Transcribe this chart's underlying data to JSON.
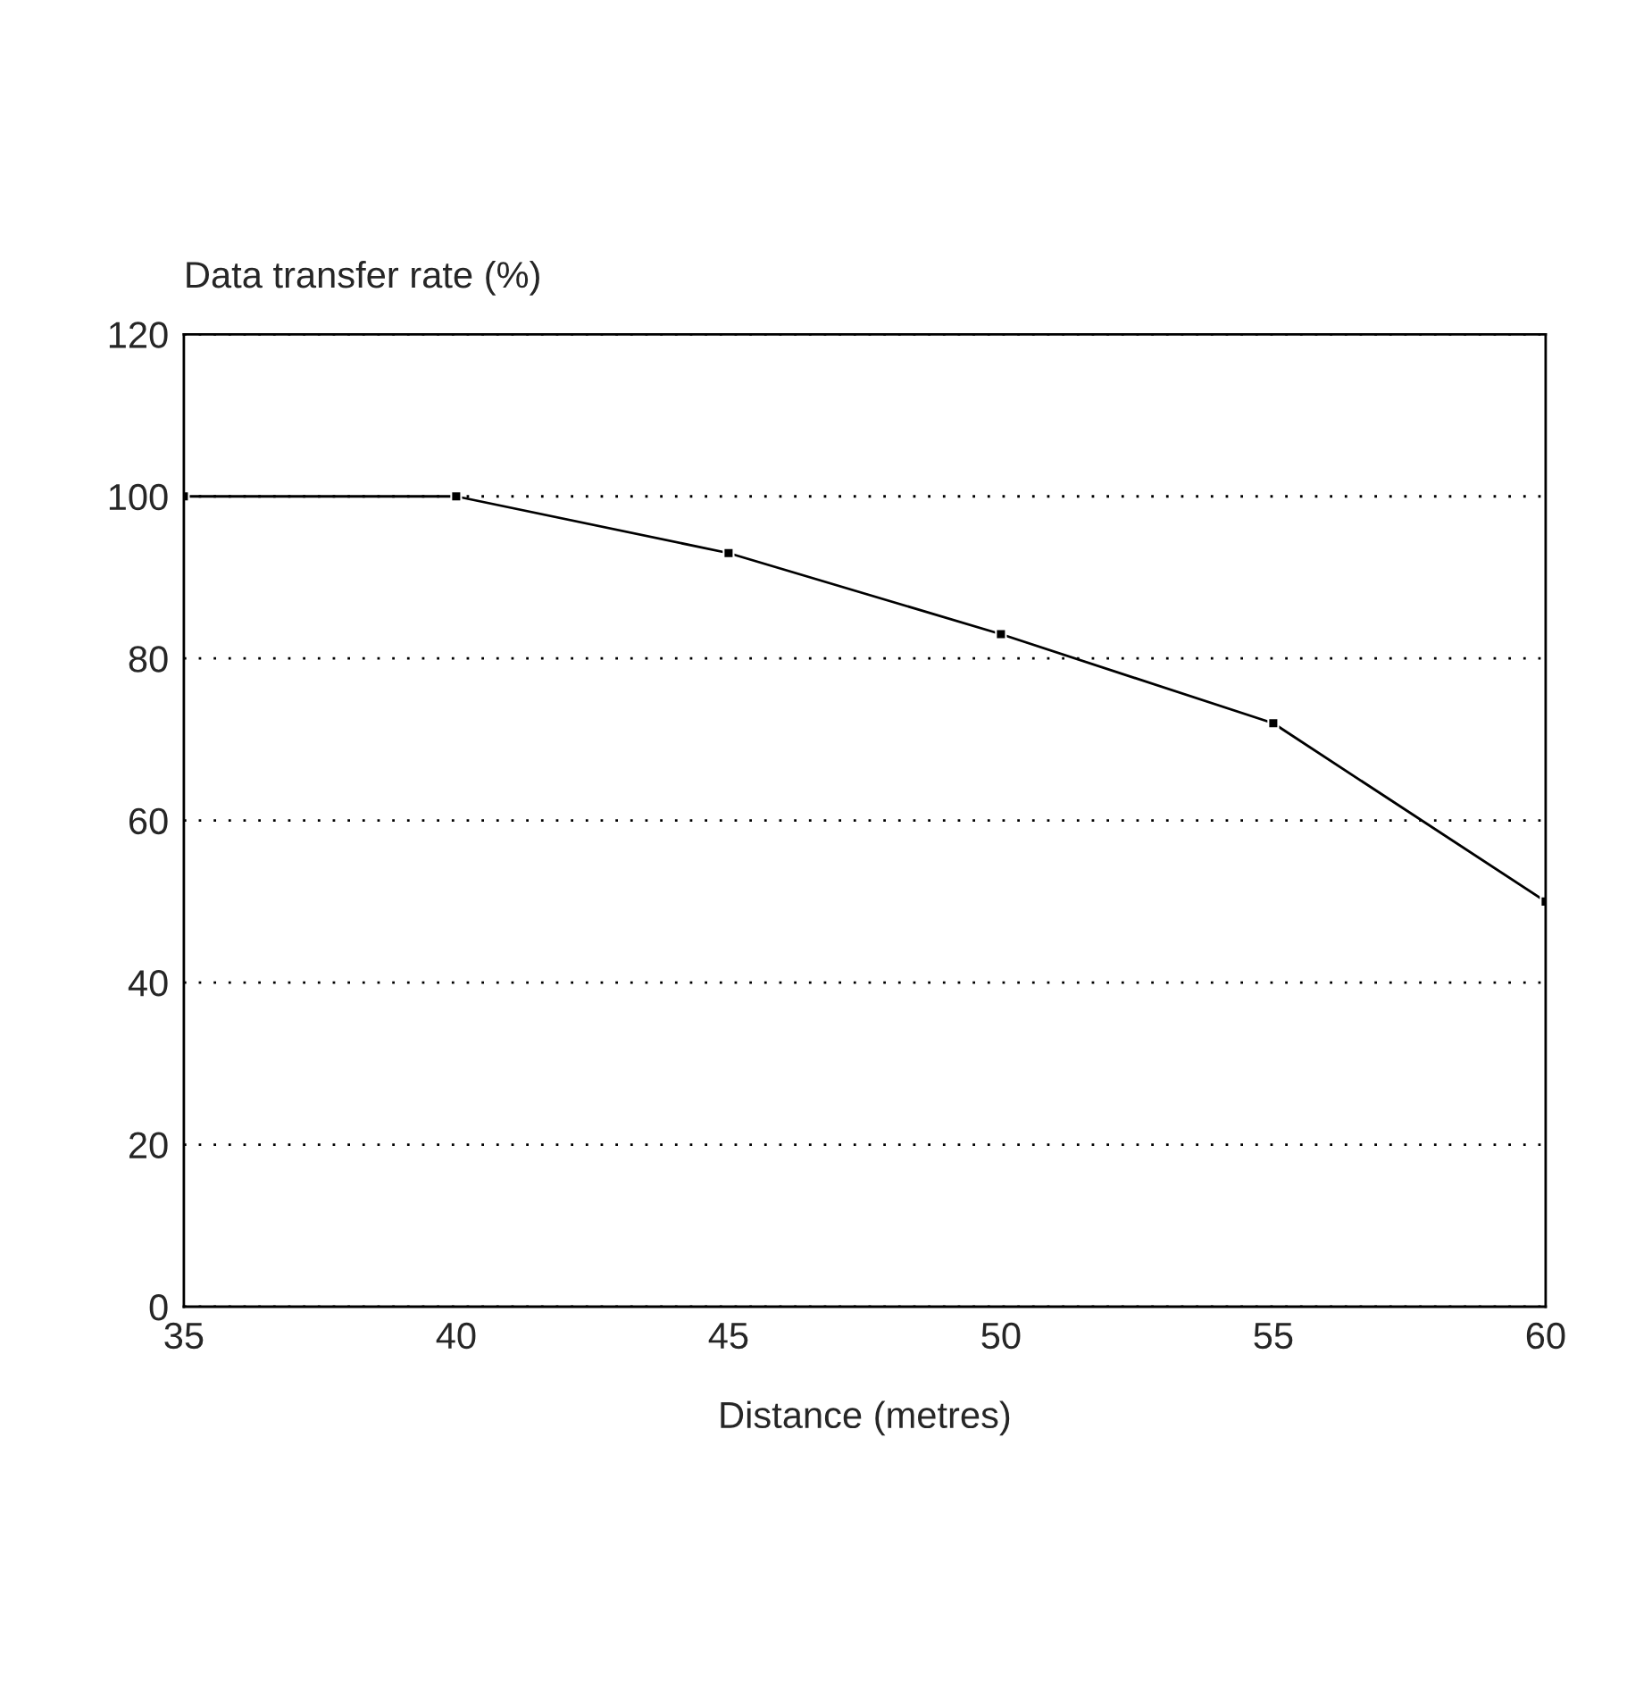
{
  "chart_data": {
    "type": "line",
    "xlabel": "Distance (metres)",
    "ylabel": "Data transfer rate (%)",
    "x": [
      35,
      40,
      45,
      50,
      55,
      60
    ],
    "series": [
      {
        "color": "#000000",
        "values": [
          100,
          100,
          93,
          83,
          72,
          50
        ]
      }
    ],
    "xlim": [
      35,
      60
    ],
    "xticks": [
      35,
      40,
      45,
      50,
      55,
      60
    ],
    "ylim": [
      0,
      120
    ],
    "yticks": [
      0,
      20,
      40,
      60,
      80,
      100,
      120
    ],
    "grid": "y",
    "marker": "square",
    "line_style": "solid"
  }
}
